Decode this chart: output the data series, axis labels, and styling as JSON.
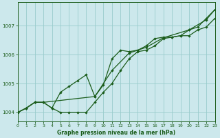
{
  "title": "Graphe pression niveau de la mer (hPa)",
  "background_color": "#cce8ec",
  "grid_color": "#99cccc",
  "line_color": "#1a5c1a",
  "x_min": 0,
  "x_max": 23,
  "y_min": 1003.7,
  "y_max": 1007.8,
  "yticks": [
    1004,
    1005,
    1006,
    1007
  ],
  "xticks": [
    0,
    1,
    2,
    3,
    4,
    5,
    6,
    7,
    8,
    9,
    10,
    11,
    12,
    13,
    14,
    15,
    16,
    17,
    18,
    19,
    20,
    21,
    22,
    23
  ],
  "series1": [
    [
      0,
      1004.0
    ],
    [
      1,
      1004.15
    ],
    [
      2,
      1004.35
    ],
    [
      3,
      1004.35
    ],
    [
      4,
      1004.15
    ],
    [
      5,
      1004.0
    ],
    [
      6,
      1004.0
    ],
    [
      7,
      1004.0
    ],
    [
      8,
      1004.0
    ],
    [
      9,
      1004.35
    ],
    [
      10,
      1004.7
    ],
    [
      11,
      1005.0
    ],
    [
      12,
      1005.45
    ],
    [
      13,
      1005.85
    ],
    [
      14,
      1006.1
    ],
    [
      15,
      1006.15
    ],
    [
      16,
      1006.3
    ],
    [
      17,
      1006.55
    ],
    [
      18,
      1006.6
    ],
    [
      19,
      1006.65
    ],
    [
      20,
      1006.65
    ],
    [
      21,
      1006.85
    ],
    [
      22,
      1006.95
    ],
    [
      23,
      1007.25
    ]
  ],
  "series2": [
    [
      0,
      1004.0
    ],
    [
      1,
      1004.15
    ],
    [
      2,
      1004.35
    ],
    [
      3,
      1004.35
    ],
    [
      4,
      1004.15
    ],
    [
      5,
      1004.7
    ],
    [
      6,
      1004.9
    ],
    [
      7,
      1005.1
    ],
    [
      8,
      1005.3
    ],
    [
      9,
      1004.55
    ],
    [
      10,
      1004.95
    ],
    [
      11,
      1005.85
    ],
    [
      12,
      1006.15
    ],
    [
      13,
      1006.1
    ],
    [
      14,
      1006.15
    ],
    [
      15,
      1006.3
    ],
    [
      16,
      1006.55
    ],
    [
      17,
      1006.6
    ],
    [
      18,
      1006.6
    ],
    [
      19,
      1006.65
    ],
    [
      20,
      1006.85
    ],
    [
      21,
      1006.95
    ],
    [
      22,
      1007.25
    ],
    [
      23,
      1007.55
    ]
  ],
  "series3": [
    [
      0,
      1004.0
    ],
    [
      1,
      1004.15
    ],
    [
      2,
      1004.35
    ],
    [
      3,
      1004.35
    ],
    [
      9,
      1004.55
    ],
    [
      11,
      1005.45
    ],
    [
      13,
      1006.05
    ],
    [
      15,
      1006.25
    ],
    [
      17,
      1006.58
    ],
    [
      20,
      1006.85
    ],
    [
      22,
      1007.2
    ],
    [
      23,
      1007.55
    ]
  ]
}
